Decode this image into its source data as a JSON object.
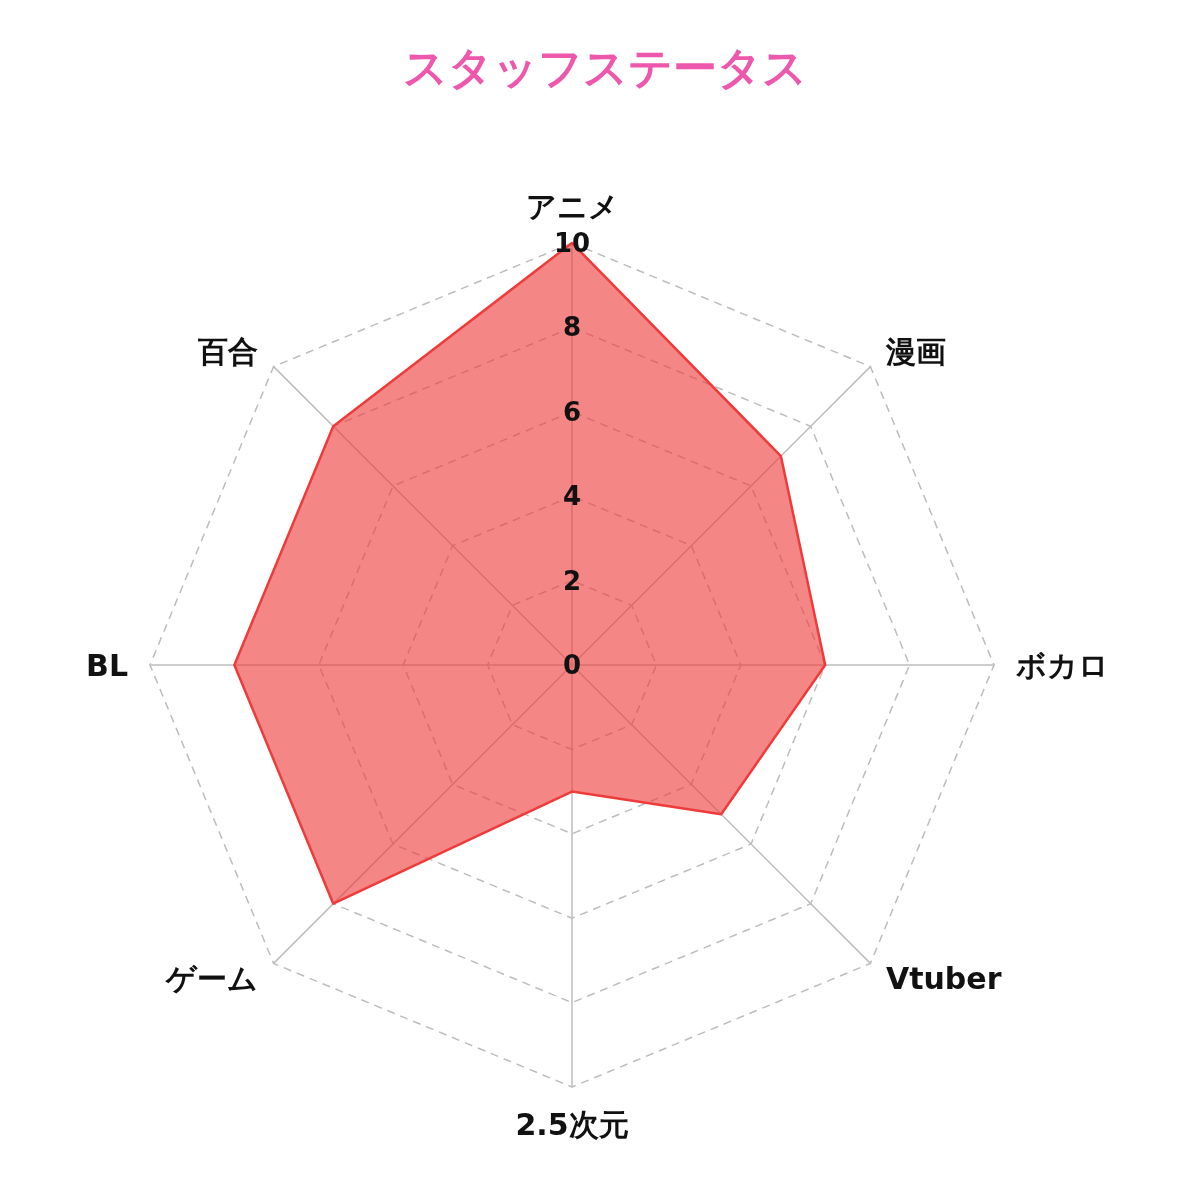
{
  "chart_data": {
    "type": "radar",
    "title": "スタッフステータス",
    "categories": [
      "アニメ",
      "漫画",
      "ボカロ",
      "Vtuber",
      "2.5次元",
      "ゲーム",
      "BL",
      "百合"
    ],
    "series": [
      {
        "color": "#ee3b3b",
        "values": [
          10,
          7,
          6,
          5,
          3,
          8,
          8,
          8
        ]
      }
    ],
    "ylim": [
      0,
      10
    ],
    "yticks": [
      0,
      2,
      4,
      6,
      8,
      10
    ],
    "grid": true,
    "marker": "none",
    "line_style": "solid"
  }
}
